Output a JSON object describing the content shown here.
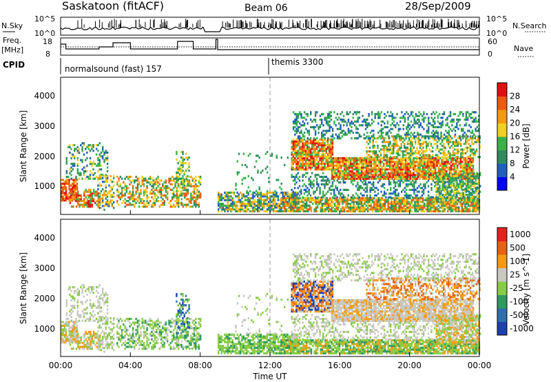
{
  "header": {
    "title": "Saskatoon (fitACF)",
    "beam": "Beam 06",
    "date": "28/Sep/2009"
  },
  "status_panel": {
    "nsky_label": "N.Sky",
    "nsky_ticks": [
      "10^5",
      "10^0"
    ],
    "nsearch_label": "N.Search",
    "nsearch_ticks": [
      "10^5",
      "10^0"
    ],
    "freq_label": "Freq.",
    "freq_unit": "[MHz]",
    "freq_ticks": [
      "18",
      "8"
    ],
    "nave_label": "Nave",
    "nave_ticks": [
      "60",
      "0"
    ],
    "cpid_label": "CPID",
    "cpid_segments": [
      {
        "start_h": 0,
        "label": "normalsound (fast) 157"
      },
      {
        "start_h": 12,
        "label": "themis 3300"
      }
    ]
  },
  "time_axis": {
    "ticks": [
      "00:00",
      "04:00",
      "08:00",
      "12:00",
      "16:00",
      "20:00",
      "00:00"
    ],
    "label": "Time UT"
  },
  "chart_data": [
    {
      "type": "heatmap",
      "name": "power",
      "ylabel": "Slant Range [km]",
      "yticks": [
        "1000",
        "2000",
        "3000",
        "4000"
      ],
      "ylim": [
        180,
        4600
      ],
      "xlim": [
        0,
        24
      ],
      "colorbar": {
        "label": "Power [dB]",
        "ticks": [
          "4",
          "8",
          "12",
          "16",
          "20",
          "24",
          "28"
        ],
        "colors": [
          "#0000ff",
          "#1f5fbf",
          "#2e8c5e",
          "#37b34a",
          "#f0d020",
          "#f59a10",
          "#ee5a10",
          "#e01010"
        ]
      }
    },
    {
      "type": "heatmap",
      "name": "velocity",
      "ylabel": "Slant Range [km]",
      "yticks": [
        "1000",
        "2000",
        "3000",
        "4000"
      ],
      "ylim": [
        180,
        4600
      ],
      "xlim": [
        0,
        24
      ],
      "colorbar": {
        "label": "Velocity [m s^-1]",
        "ticks": [
          "1000",
          "500",
          "100",
          "25",
          "-25",
          "-100",
          "-500",
          "-1000"
        ],
        "colors": [
          "#1f3fb0",
          "#2e6fae",
          "#2e9a60",
          "#88cc44",
          "#c8c8c0",
          "#f59a10",
          "#e86010",
          "#e82020"
        ]
      }
    }
  ]
}
